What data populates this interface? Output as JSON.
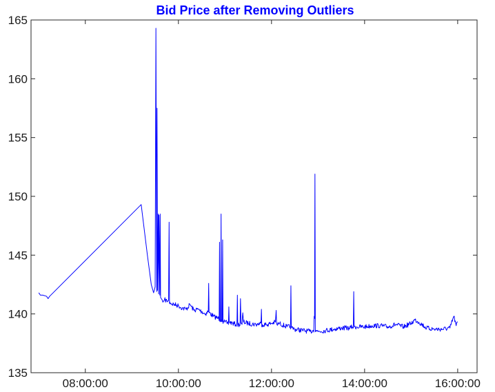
{
  "chart_data": {
    "type": "line",
    "title": "Bid Price after Removing Outliers",
    "xlabel": "",
    "ylabel": "",
    "xlim": [
      "06:50:00",
      "16:25:00"
    ],
    "ylim": [
      135,
      165
    ],
    "x_ticks": [
      "08:00:00",
      "10:00:00",
      "12:00:00",
      "14:00:00",
      "16:00:00"
    ],
    "y_ticks": [
      135,
      140,
      145,
      150,
      155,
      160,
      165
    ],
    "grid": false,
    "legend": "none",
    "series_color": "#0000ff",
    "series": [
      {
        "name": "",
        "x": [
          "07:00",
          "07:02",
          "07:05",
          "07:10",
          "07:12",
          "07:14",
          "09:12",
          "09:20",
          "09:25",
          "09:28",
          "09:30",
          "09:31",
          "09:32",
          "09:32:30",
          "09:33",
          "09:34",
          "09:34:30",
          "09:35",
          "09:36",
          "09:36:30",
          "09:37",
          "09:38",
          "09:39",
          "09:40",
          "09:42",
          "09:46",
          "09:48",
          "09:49",
          "09:50",
          "09:55",
          "10:00",
          "10:05",
          "10:10",
          "10:15",
          "10:20",
          "10:25",
          "10:30",
          "10:35",
          "10:38",
          "10:39",
          "10:40",
          "10:45",
          "10:52",
          "10:53",
          "10:54",
          "10:55",
          "10:56",
          "10:57",
          "10:58",
          "11:00",
          "11:04",
          "11:05",
          "11:06",
          "11:10",
          "11:15",
          "11:16",
          "11:17",
          "11:20",
          "11:22",
          "11:23",
          "11:24",
          "11:30",
          "11:40",
          "11:46",
          "11:47",
          "11:48",
          "11:55",
          "12:00",
          "12:05",
          "12:06",
          "12:07",
          "12:10",
          "12:20",
          "12:24",
          "12:25",
          "12:26",
          "12:30",
          "12:40",
          "12:50",
          "12:54",
          "12:55",
          "12:56",
          "12:57",
          "12:58",
          "13:00",
          "13:10",
          "13:20",
          "13:30",
          "13:40",
          "13:45",
          "13:46",
          "13:47",
          "13:50",
          "14:00",
          "14:10",
          "14:20",
          "14:30",
          "14:40",
          "14:50",
          "15:00",
          "15:05",
          "15:10",
          "15:20",
          "15:30",
          "15:40",
          "15:50",
          "15:55",
          "15:58",
          "16:00"
        ],
        "values": [
          141.8,
          141.6,
          141.6,
          141.5,
          141.3,
          141.5,
          149.3,
          145.0,
          142.5,
          141.8,
          142.3,
          164.3,
          141.9,
          157.5,
          142.0,
          148.5,
          141.7,
          148.4,
          141.6,
          148.5,
          141.4,
          141.3,
          141.2,
          141.0,
          141.2,
          141.1,
          147.8,
          141.0,
          140.9,
          140.8,
          140.7,
          140.5,
          140.4,
          140.8,
          140.3,
          140.4,
          140.2,
          140.0,
          140.2,
          142.6,
          140.1,
          139.8,
          139.6,
          146.1,
          139.5,
          148.5,
          139.5,
          146.3,
          139.3,
          139.3,
          139.2,
          140.6,
          139.3,
          139.2,
          139.1,
          141.6,
          139.1,
          141.3,
          139.1,
          140.1,
          139.3,
          139.2,
          139.1,
          139.2,
          140.4,
          139.1,
          139.1,
          139.2,
          139.3,
          140.3,
          139.1,
          139.2,
          138.9,
          138.9,
          142.4,
          138.8,
          138.7,
          138.6,
          138.5,
          138.6,
          139.8,
          151.9,
          138.6,
          138.6,
          138.5,
          138.6,
          138.7,
          138.8,
          138.8,
          138.9,
          141.9,
          138.9,
          138.9,
          138.9,
          139.0,
          139.0,
          138.9,
          139.1,
          138.9,
          139.2,
          139.5,
          139.3,
          138.8,
          138.7,
          138.7,
          138.8,
          139.8,
          139.0,
          139.3
        ]
      }
    ]
  }
}
